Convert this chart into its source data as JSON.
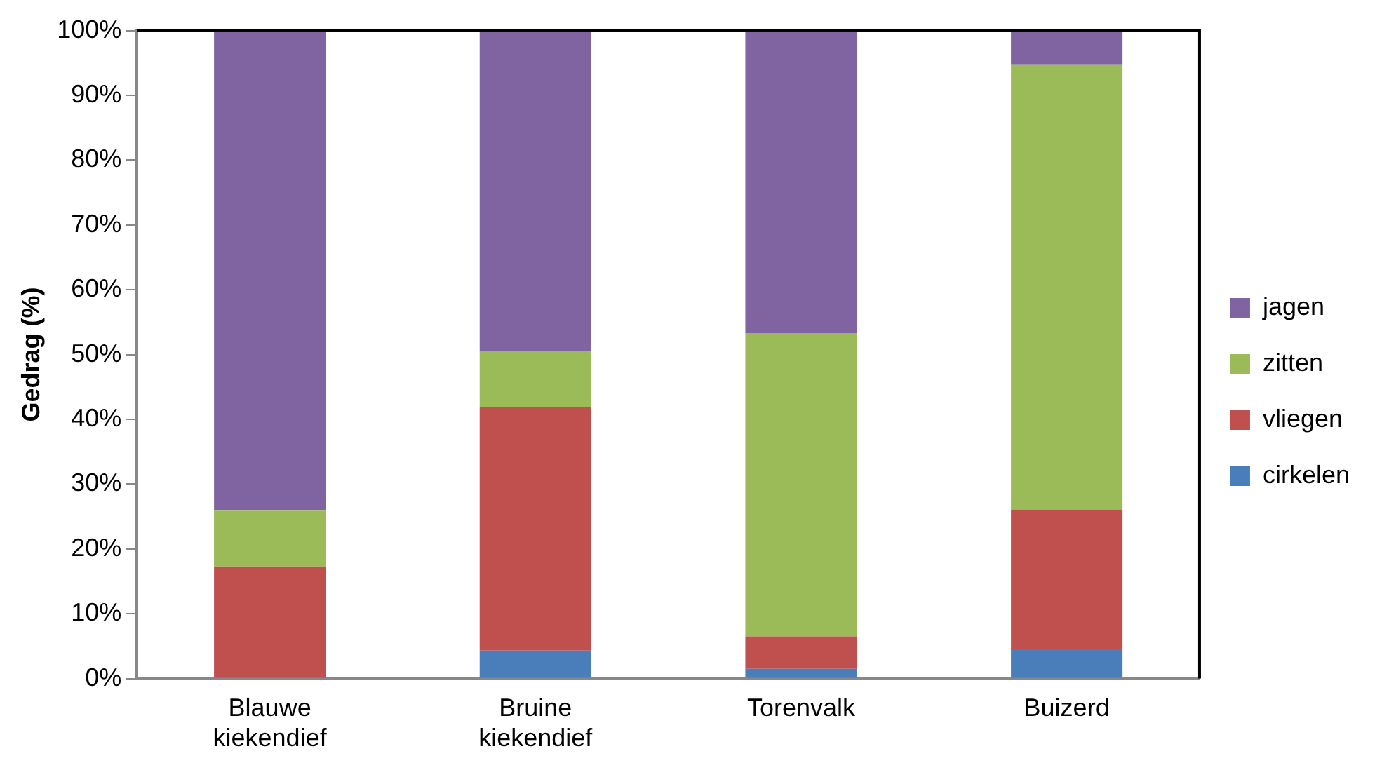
{
  "chart_data": {
    "type": "bar",
    "stacked": true,
    "ylabel": "Gedrag (%)",
    "categories": [
      "Blauwe kiekendief",
      "Bruine kiekendief",
      "Torenvalk",
      "Buizerd"
    ],
    "series": [
      {
        "name": "cirkelen",
        "color": "#4a7ebb",
        "values": [
          0,
          4.3,
          1.5,
          4.6
        ]
      },
      {
        "name": "vliegen",
        "color": "#c0504d",
        "values": [
          17.3,
          37.6,
          5.0,
          21.5
        ]
      },
      {
        "name": "zitten",
        "color": "#9bbb59",
        "values": [
          8.7,
          8.6,
          46.8,
          68.7
        ]
      },
      {
        "name": "jagen",
        "color": "#8064a2",
        "values": [
          74.0,
          49.5,
          46.7,
          5.2
        ]
      }
    ],
    "ylim": [
      0,
      100
    ],
    "yticks": [
      {
        "value": 0,
        "label": "0%"
      },
      {
        "value": 10,
        "label": "10%"
      },
      {
        "value": 20,
        "label": "20%"
      },
      {
        "value": 30,
        "label": "30%"
      },
      {
        "value": 40,
        "label": "40%"
      },
      {
        "value": 50,
        "label": "50%"
      },
      {
        "value": 60,
        "label": "60%"
      },
      {
        "value": 70,
        "label": "70%"
      },
      {
        "value": 80,
        "label": "80%"
      },
      {
        "value": 90,
        "label": "90%"
      },
      {
        "value": 100,
        "label": "100%"
      }
    ],
    "grid": false,
    "legend": "right"
  }
}
